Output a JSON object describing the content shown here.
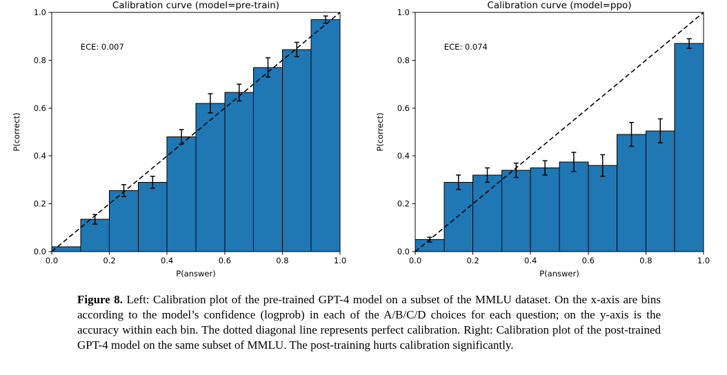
{
  "caption": {
    "label": "Figure 8.",
    "text": " Left: Calibration plot of the pre-trained GPT-4 model on a subset of the MMLU dataset. On the x-axis are bins according to the model’s confidence (logprob) in each of the A/B/C/D choices for each question; on the y-axis is the accuracy within each bin. The dotted diagonal line represents perfect calibration. Right: Calibration plot of the post-trained GPT-4 model on the same subset of MMLU. The post-training hurts calibration significantly."
  },
  "chart_data": [
    {
      "type": "bar",
      "title": "Calibration curve (model=pre-train)",
      "xlabel": "P(answer)",
      "ylabel": "P(correct)",
      "annotation": "ECE: 0.007",
      "xlim": [
        0,
        1
      ],
      "ylim": [
        0,
        1
      ],
      "xticks": [
        0.0,
        0.2,
        0.4,
        0.6,
        0.8,
        1.0
      ],
      "yticks": [
        0.0,
        0.2,
        0.4,
        0.6,
        0.8,
        1.0
      ],
      "bin_edges": [
        0.0,
        0.1,
        0.2,
        0.3,
        0.4,
        0.5,
        0.6,
        0.7,
        0.8,
        0.9,
        1.0
      ],
      "values": [
        0.02,
        0.135,
        0.255,
        0.29,
        0.48,
        0.62,
        0.665,
        0.77,
        0.845,
        0.97
      ],
      "errors": [
        0,
        0.02,
        0.025,
        0.025,
        0.03,
        0.04,
        0.035,
        0.04,
        0.03,
        0.015
      ],
      "bar_color": "#1f77b4",
      "bar_edge_color": "#000000",
      "diagonal": {
        "style": "dashed",
        "from": [
          0,
          0
        ],
        "to": [
          1,
          1
        ]
      },
      "grid": false,
      "legend": "none"
    },
    {
      "type": "bar",
      "title": "Calibration curve (model=ppo)",
      "xlabel": "P(answer)",
      "ylabel": "P(correct)",
      "annotation": "ECE: 0.074",
      "xlim": [
        0,
        1
      ],
      "ylim": [
        0,
        1
      ],
      "xticks": [
        0.0,
        0.2,
        0.4,
        0.6,
        0.8,
        1.0
      ],
      "yticks": [
        0.0,
        0.2,
        0.4,
        0.6,
        0.8,
        1.0
      ],
      "bin_edges": [
        0.0,
        0.1,
        0.2,
        0.3,
        0.4,
        0.5,
        0.6,
        0.7,
        0.8,
        0.9,
        1.0
      ],
      "values": [
        0.05,
        0.29,
        0.32,
        0.34,
        0.35,
        0.375,
        0.36,
        0.49,
        0.505,
        0.87
      ],
      "errors": [
        0.01,
        0.03,
        0.03,
        0.03,
        0.03,
        0.04,
        0.045,
        0.05,
        0.05,
        0.02
      ],
      "bar_color": "#1f77b4",
      "bar_edge_color": "#000000",
      "diagonal": {
        "style": "dashed",
        "from": [
          0,
          0
        ],
        "to": [
          1,
          1
        ]
      },
      "grid": false,
      "legend": "none"
    }
  ]
}
